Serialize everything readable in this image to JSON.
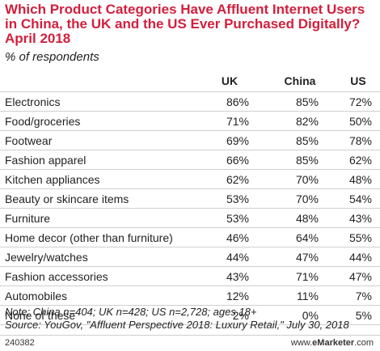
{
  "chart_data": {
    "type": "table",
    "title": "Which Product Categories Have Affluent Internet Users in China, the UK and the US Ever Purchased Digitally? April 2018",
    "subtitle": "% of respondents",
    "columns": [
      "UK",
      "China",
      "US"
    ],
    "categories": [
      "Electronics",
      "Food/groceries",
      "Footwear",
      "Fashion apparel",
      "Kitchen appliances",
      "Beauty or skincare items",
      "Furniture",
      "Home decor (other than furniture)",
      "Jewelry/watches",
      "Fashion accessories",
      "Automobiles",
      "None of these"
    ],
    "series": [
      {
        "name": "UK",
        "values": [
          "86%",
          "71%",
          "69%",
          "66%",
          "62%",
          "53%",
          "53%",
          "46%",
          "44%",
          "43%",
          "12%",
          "2%"
        ]
      },
      {
        "name": "China",
        "values": [
          "85%",
          "82%",
          "85%",
          "85%",
          "70%",
          "70%",
          "48%",
          "64%",
          "47%",
          "71%",
          "11%",
          "0%"
        ]
      },
      {
        "name": "US",
        "values": [
          "72%",
          "50%",
          "78%",
          "62%",
          "48%",
          "54%",
          "43%",
          "55%",
          "44%",
          "47%",
          "7%",
          "5%"
        ]
      }
    ]
  },
  "note": "Note: China n=404; UK n=428; US n=2,728; ages 18+",
  "source": "Source: YouGov, \"Affluent Perspective 2018: Luxury Retail,\" July 30, 2018",
  "footer": {
    "id": "240382",
    "brand_prefix": "www.",
    "brand_name": "eMarketer",
    "brand_suffix": ".com"
  },
  "colors": {
    "title": "#d21f3c",
    "rule": "#cfcfcf"
  }
}
